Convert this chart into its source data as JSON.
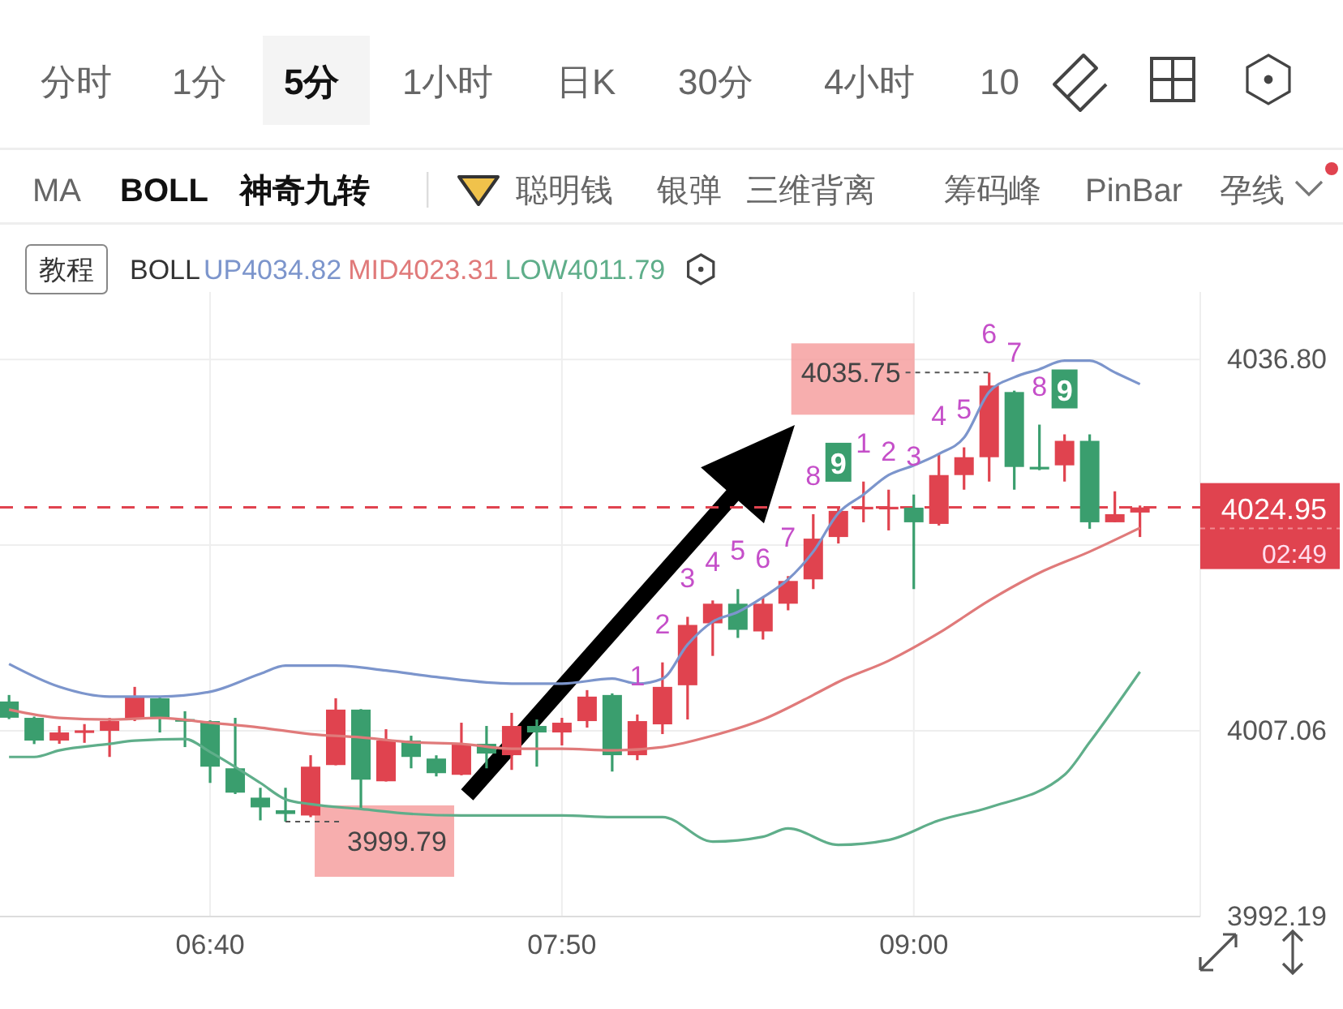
{
  "chart_data": {
    "type": "candlestick",
    "x": [
      6,
      6.0833,
      6.1667,
      6.25,
      6.3333,
      6.4167,
      6.5,
      6.5833,
      6.6667,
      6.75,
      6.8333,
      6.9167,
      7,
      7.0833,
      7.1667,
      7.25,
      7.3333,
      7.4167,
      7.5,
      7.5833,
      7.6667,
      7.75,
      7.8333,
      7.9167,
      8,
      8.0833,
      8.1667,
      8.25,
      8.3333,
      8.4167,
      8.5,
      8.5833,
      8.6667,
      8.75,
      8.8333,
      8.9167,
      9,
      9.0833,
      9.1667,
      9.25,
      9.3333,
      9.4167,
      9.5,
      9.5833,
      9.6667,
      9.75
    ],
    "ohlc": [
      [
        4009.41,
        4009.93,
        4008.0,
        4008.11
      ],
      [
        4008.1,
        4008.2,
        4006.0,
        4006.28
      ],
      [
        4006.28,
        4007.45,
        4006.02,
        4006.93
      ],
      [
        4007.0,
        4007.6,
        4006.1,
        4007.1
      ],
      [
        4007.06,
        4008.1,
        4004.97,
        4007.84
      ],
      [
        4007.97,
        4010.58,
        4007.84,
        4009.8
      ],
      [
        4009.67,
        4009.8,
        4006.93,
        4008.1
      ],
      [
        4008.0,
        4008.63,
        4005.76,
        4007.9
      ],
      [
        4007.84,
        4007.9,
        4002.89,
        4004.19
      ],
      [
        4004.06,
        4008.1,
        4002.0,
        4002.11
      ],
      [
        4001.71,
        4002.5,
        3999.89,
        4000.93
      ],
      [
        4000.7,
        4002.5,
        3999.79,
        4000.4
      ],
      [
        4000.28,
        4005.11,
        4000.15,
        4004.19
      ],
      [
        4004.32,
        4009.67,
        4004.3,
        4008.76
      ],
      [
        4008.76,
        4008.8,
        4000.8,
        4003.15
      ],
      [
        4003.02,
        4007.19,
        4003.0,
        4006.28
      ],
      [
        4006.28,
        4006.67,
        4004.06,
        4004.97
      ],
      [
        4004.84,
        4005.1,
        4003.41,
        4003.67
      ],
      [
        4003.54,
        4007.71,
        4003.5,
        4006.02
      ],
      [
        4006.02,
        4007.45,
        4004.06,
        4005.24
      ],
      [
        4005.11,
        4008.5,
        4003.93,
        4007.45
      ],
      [
        4007.45,
        4007.97,
        4004.19,
        4006.93
      ],
      [
        4006.93,
        4008.1,
        4005.89,
        4007.71
      ],
      [
        4007.84,
        4010.32,
        4007.32,
        4009.8
      ],
      [
        4009.93,
        4010.06,
        4003.8,
        4005.11
      ],
      [
        4005.11,
        4008.37,
        4004.71,
        4007.84
      ],
      [
        4007.58,
        4012.54,
        4006.8,
        4010.58
      ],
      [
        4010.71,
        4016.19,
        4007.97,
        4015.54
      ],
      [
        4015.67,
        4017.5,
        4013.06,
        4017.24
      ],
      [
        4017.24,
        4018.41,
        4014.5,
        4015.15
      ],
      [
        4015.02,
        4017.76,
        4014.37,
        4017.24
      ],
      [
        4017.24,
        4019.45,
        4016.71,
        4019.06
      ],
      [
        4019.19,
        4024.41,
        4018.41,
        4022.45
      ],
      [
        4022.58,
        4024.93,
        4022.06,
        4024.67
      ],
      [
        4024.8,
        4027.02,
        4023.76,
        4025.0
      ],
      [
        4024.8,
        4026.37,
        4023.11,
        4025.0
      ],
      [
        4024.93,
        4025.98,
        4018.41,
        4023.76
      ],
      [
        4023.63,
        4029.24,
        4023.5,
        4027.54
      ],
      [
        4027.54,
        4029.76,
        4026.37,
        4028.97
      ],
      [
        4028.97,
        4035.75,
        4027.02,
        4034.71
      ],
      [
        4034.19,
        4034.3,
        4026.37,
        4028.19
      ],
      [
        4028.2,
        4031.58,
        4027.93,
        4028.1
      ],
      [
        4028.32,
        4030.8,
        4027.02,
        4030.28
      ],
      [
        4030.28,
        4030.8,
        4023.24,
        4023.76
      ],
      [
        4023.76,
        4026.24,
        4023.76,
        4024.41
      ],
      [
        4024.54,
        4025.1,
        4022.58,
        4024.95
      ]
    ],
    "colors": [
      "#3a9e6e",
      "#3a9e6e",
      "#e0434f",
      "#e0434f",
      "#e0434f",
      "#e0434f",
      "#3a9e6e",
      "#3a9e6e",
      "#3a9e6e",
      "#3a9e6e",
      "#3a9e6e",
      "#3a9e6e",
      "#e0434f",
      "#e0434f",
      "#3a9e6e",
      "#e0434f",
      "#3a9e6e",
      "#3a9e6e",
      "#e0434f",
      "#3a9e6e",
      "#e0434f",
      "#3a9e6e",
      "#e0434f",
      "#e0434f",
      "#3a9e6e",
      "#e0434f",
      "#e0434f",
      "#e0434f",
      "#e0434f",
      "#3a9e6e",
      "#e0434f",
      "#e0434f",
      "#e0434f",
      "#e0434f",
      "#e0434f",
      "#e0434f",
      "#3a9e6e",
      "#e0434f",
      "#e0434f",
      "#e0434f",
      "#3a9e6e",
      "#3a9e6e",
      "#e0434f",
      "#3a9e6e",
      "#e0434f",
      "#e0434f"
    ],
    "series": [
      {
        "name": "UP4034.82",
        "type": "line",
        "color": "#7c95cc",
        "x": [
          6,
          6.1667,
          6.3333,
          6.5,
          6.6667,
          6.8333,
          6.9167,
          7.0833,
          7.25,
          7.4167,
          7.6667,
          7.8333,
          8,
          8.0833,
          8.1667,
          8.25,
          8.3333,
          8.4167,
          8.5,
          8.5833,
          8.6667,
          8.75,
          8.8333,
          8.9167,
          9,
          9.0833,
          9.1667,
          9.25,
          9.3333,
          9.4167,
          9.5,
          9.5833,
          9.6667,
          9.75
        ],
        "values": [
          4012.41,
          4010.58,
          4009.8,
          4009.8,
          4010.19,
          4011.63,
          4012.28,
          4012.28,
          4011.89,
          4011.37,
          4010.84,
          4010.84,
          4011.24,
          4010.84,
          4011.24,
          4013.97,
          4015.8,
          4016.58,
          4017.76,
          4019.19,
          4021.41,
          4024.5,
          4025.98,
          4027.54,
          4028.32,
          4029.24,
          4030.54,
          4034.19,
          4035.37,
          4036.02,
          4036.7,
          4036.7,
          4035.76,
          4034.82
        ]
      },
      {
        "name": "MID4023.31",
        "type": "line",
        "color": "#e07a7a",
        "x": [
          6,
          6.1667,
          6.3333,
          6.5,
          6.6667,
          6.8333,
          7,
          7.1667,
          7.3333,
          7.5,
          7.6667,
          7.8333,
          8,
          8.1667,
          8.3333,
          8.5,
          8.6667,
          8.75,
          8.9167,
          9.0833,
          9.25,
          9.4167,
          9.5833,
          9.75
        ],
        "values": [
          4008.76,
          4008.1,
          4007.97,
          4008.1,
          4007.71,
          4007.32,
          4006.8,
          4006.54,
          4006.15,
          4006.02,
          4005.63,
          4005.63,
          4005.5,
          4005.76,
          4006.67,
          4007.97,
          4009.93,
          4010.98,
          4012.67,
          4014.89,
          4017.5,
          4019.71,
          4021.41,
          4023.31
        ]
      },
      {
        "name": "LOW4011.79",
        "type": "line",
        "color": "#5fae8a",
        "x": [
          6,
          6.0833,
          6.1667,
          6.3333,
          6.4167,
          6.5833,
          6.6667,
          6.8333,
          6.9167,
          7,
          7.1667,
          7.3333,
          7.5,
          7.8333,
          8,
          8.1667,
          8.3333,
          8.5,
          8.5833,
          8.75,
          8.9167,
          9.0833,
          9.25,
          9.5,
          9.5833,
          9.75
        ],
        "values": [
          4004.97,
          4004.97,
          4005.5,
          4006.02,
          4006.28,
          4006.41,
          4005.37,
          4002.89,
          4001.58,
          4001.19,
          4000.8,
          4000.41,
          4000.28,
          4000.28,
          4000.15,
          4000.15,
          3998.19,
          3998.58,
          3999.24,
          3997.93,
          3998.32,
          3999.89,
          4000.93,
          4003.54,
          4006.15,
          4011.79
        ]
      }
    ],
    "legend_title": "BOLL",
    "legend": "top",
    "xlim": [
      5.97,
      9.95
    ],
    "xticks": [
      {
        "value": 6.6667,
        "label": "06:40"
      },
      {
        "value": 7.8333,
        "label": "07:50"
      },
      {
        "value": 9,
        "label": "09:00"
      }
    ],
    "ylim": [
      3992.19,
      4042.2
    ],
    "yticks": [
      3992.19,
      4007.06,
      {
        "value": 4021.93,
        "label": null
      },
      {
        "value": 4036.8,
        "label": "4036.80"
      }
    ],
    "grid": true,
    "ref_lines": [
      {
        "axis": "y",
        "value": 4024.95,
        "label": "4024.95",
        "color": "#e0434f",
        "line_style": "dashed"
      }
    ],
    "annotations": [
      {
        "text": "1",
        "x": 8.0833,
        "y": 4008.37
      },
      {
        "text": "2",
        "x": 8.1667,
        "y": 4012.54
      },
      {
        "text": "3",
        "x": 8.25,
        "y": 4016.19
      },
      {
        "text": "4",
        "x": 8.3333,
        "y": 4017.5
      },
      {
        "text": "5",
        "x": 8.4167,
        "y": 4018.41
      },
      {
        "text": "6",
        "x": 8.5,
        "y": 4017.76
      },
      {
        "text": "7",
        "x": 8.5833,
        "y": 4019.45
      },
      {
        "text": "8",
        "x": 8.6667,
        "y": 4024.41
      },
      {
        "text": "9",
        "x": 8.75,
        "y": 4024.93
      },
      {
        "text": "1",
        "x": 8.8333,
        "y": 4027.02
      },
      {
        "text": "2",
        "x": 8.9167,
        "y": 4026.37
      },
      {
        "text": "3",
        "x": 9,
        "y": 4025.98
      },
      {
        "text": "4",
        "x": 9.0833,
        "y": 4029.24
      },
      {
        "text": "5",
        "x": 9.1667,
        "y": 4029.76
      },
      {
        "text": "6",
        "x": 9.25,
        "y": 4035.75
      },
      {
        "text": "7",
        "x": 9.3333,
        "y": 4034.3
      },
      {
        "text": "8",
        "x": 9.4167,
        "y": 4031.58
      },
      {
        "text": "9",
        "x": 9.5,
        "y": 4030.8
      },
      {
        "text": "4035.75",
        "x": 9.25,
        "y": 4035.75
      },
      {
        "text": "3999.79",
        "x": 6.9167,
        "y": 3999.79
      },
      "02:49",
      "分时",
      "1分",
      "5分",
      "1小时",
      "日K",
      "30分",
      "4小时",
      "10",
      "MA",
      "BOLL",
      "神奇九转",
      "聪明钱",
      "银弹",
      "三维背离",
      "筹码峰",
      "PinBar",
      "孕线",
      "教程"
    ]
  }
}
